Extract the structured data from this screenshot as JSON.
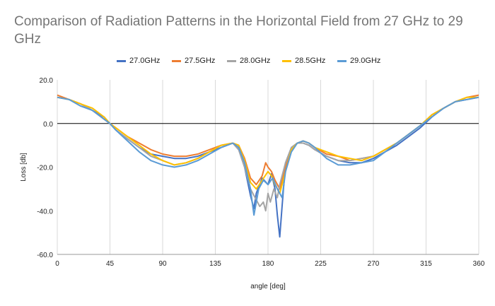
{
  "chart_data": {
    "type": "line",
    "title": "Comparison of Radiation Patterns in the Horizontal Field from 27 GHz to 29 GHz",
    "xlabel": "angle [deg]",
    "ylabel": "Loss [db]",
    "xlim": [
      0,
      360
    ],
    "ylim": [
      -60,
      20
    ],
    "xticks": [
      "0",
      "45",
      "90",
      "135",
      "180",
      "225",
      "270",
      "315",
      "360"
    ],
    "yticks": [
      "20.0",
      "0.0",
      "-20.0",
      "-40.0",
      "-60.0"
    ],
    "grid": "vertical",
    "legend": "top",
    "series": [
      {
        "name": "27.0GHz",
        "color": "#4472C4",
        "x": [
          0,
          10,
          20,
          30,
          40,
          45,
          50,
          60,
          70,
          80,
          90,
          100,
          110,
          120,
          130,
          140,
          150,
          155,
          160,
          165,
          168,
          170,
          175,
          180,
          183,
          186,
          188,
          190,
          192,
          195,
          200,
          205,
          210,
          215,
          220,
          230,
          240,
          250,
          260,
          270,
          280,
          290,
          300,
          310,
          320,
          330,
          340,
          350,
          360
        ],
        "y": [
          12,
          11,
          9,
          6,
          3,
          0,
          -3,
          -7,
          -11,
          -14,
          -15,
          -16,
          -16,
          -15,
          -13,
          -11,
          -9,
          -12,
          -20,
          -33,
          -39,
          -32,
          -25,
          -28,
          -23,
          -30,
          -42,
          -52,
          -38,
          -18,
          -11,
          -9,
          -9,
          -10,
          -12,
          -15,
          -17,
          -18,
          -18,
          -16,
          -13,
          -10,
          -6,
          -2,
          3,
          7,
          10,
          11,
          12
        ]
      },
      {
        "name": "27.5GHz",
        "color": "#ED7D31",
        "x": [
          0,
          10,
          20,
          30,
          40,
          45,
          50,
          60,
          70,
          80,
          90,
          100,
          110,
          120,
          130,
          140,
          150,
          155,
          160,
          165,
          170,
          175,
          178,
          180,
          183,
          186,
          190,
          195,
          200,
          205,
          210,
          215,
          220,
          230,
          240,
          250,
          260,
          270,
          280,
          290,
          300,
          310,
          320,
          330,
          340,
          350,
          360
        ],
        "y": [
          13,
          11,
          9,
          6,
          2,
          0,
          -2,
          -6,
          -9,
          -12,
          -14,
          -15,
          -15,
          -14,
          -12,
          -10,
          -9,
          -10,
          -16,
          -25,
          -28,
          -24,
          -18,
          -20,
          -22,
          -26,
          -30,
          -20,
          -12,
          -9,
          -8,
          -9,
          -11,
          -14,
          -15,
          -17,
          -16,
          -15,
          -12,
          -9,
          -5,
          -1,
          4,
          7,
          10,
          12,
          13
        ]
      },
      {
        "name": "28.0GHz",
        "color": "#A5A5A5",
        "x": [
          0,
          10,
          20,
          30,
          40,
          45,
          50,
          60,
          70,
          80,
          90,
          100,
          110,
          120,
          130,
          140,
          150,
          155,
          160,
          165,
          170,
          173,
          176,
          178,
          180,
          182,
          185,
          188,
          190,
          195,
          200,
          205,
          210,
          215,
          220,
          230,
          240,
          250,
          260,
          270,
          280,
          290,
          300,
          310,
          320,
          330,
          340,
          350,
          360
        ],
        "y": [
          12,
          11,
          9,
          6,
          2,
          0,
          -3,
          -7,
          -11,
          -15,
          -17,
          -19,
          -18,
          -16,
          -13,
          -10,
          -9,
          -12,
          -20,
          -30,
          -35,
          -38,
          -36,
          -40,
          -32,
          -36,
          -30,
          -34,
          -28,
          -18,
          -11,
          -9,
          -9,
          -10,
          -12,
          -15,
          -17,
          -17,
          -16,
          -15,
          -12,
          -9,
          -5,
          -1,
          4,
          7,
          10,
          11,
          12
        ]
      },
      {
        "name": "28.5GHz",
        "color": "#FFC000",
        "x": [
          0,
          10,
          20,
          30,
          40,
          45,
          50,
          60,
          70,
          80,
          90,
          100,
          110,
          120,
          130,
          140,
          150,
          155,
          160,
          165,
          170,
          175,
          180,
          183,
          186,
          190,
          195,
          200,
          205,
          210,
          215,
          220,
          230,
          240,
          250,
          260,
          270,
          280,
          290,
          300,
          310,
          320,
          330,
          340,
          350,
          360
        ],
        "y": [
          12,
          11,
          9,
          7,
          3,
          0,
          -2,
          -6,
          -10,
          -14,
          -17,
          -19,
          -18,
          -16,
          -13,
          -10,
          -9,
          -10,
          -17,
          -27,
          -30,
          -26,
          -22,
          -24,
          -28,
          -32,
          -22,
          -12,
          -9,
          -8,
          -9,
          -11,
          -13,
          -15,
          -16,
          -17,
          -15,
          -12,
          -9,
          -5,
          -1,
          4,
          7,
          10,
          12,
          12
        ]
      },
      {
        "name": "29.0GHz",
        "color": "#5B9BD5",
        "x": [
          0,
          10,
          20,
          30,
          40,
          45,
          50,
          60,
          70,
          80,
          90,
          100,
          110,
          120,
          130,
          140,
          150,
          155,
          160,
          165,
          168,
          172,
          176,
          180,
          184,
          188,
          192,
          195,
          200,
          205,
          210,
          215,
          220,
          230,
          240,
          250,
          260,
          270,
          280,
          290,
          300,
          310,
          320,
          330,
          340,
          350,
          360
        ],
        "y": [
          12,
          11,
          8,
          6,
          2,
          0,
          -3,
          -8,
          -13,
          -17,
          -19,
          -20,
          -19,
          -17,
          -14,
          -11,
          -9,
          -11,
          -18,
          -30,
          -42,
          -30,
          -26,
          -28,
          -25,
          -30,
          -34,
          -22,
          -13,
          -9,
          -8,
          -9,
          -11,
          -16,
          -19,
          -19,
          -18,
          -17,
          -13,
          -9,
          -5,
          -1,
          3,
          7,
          10,
          11,
          12
        ]
      }
    ]
  }
}
